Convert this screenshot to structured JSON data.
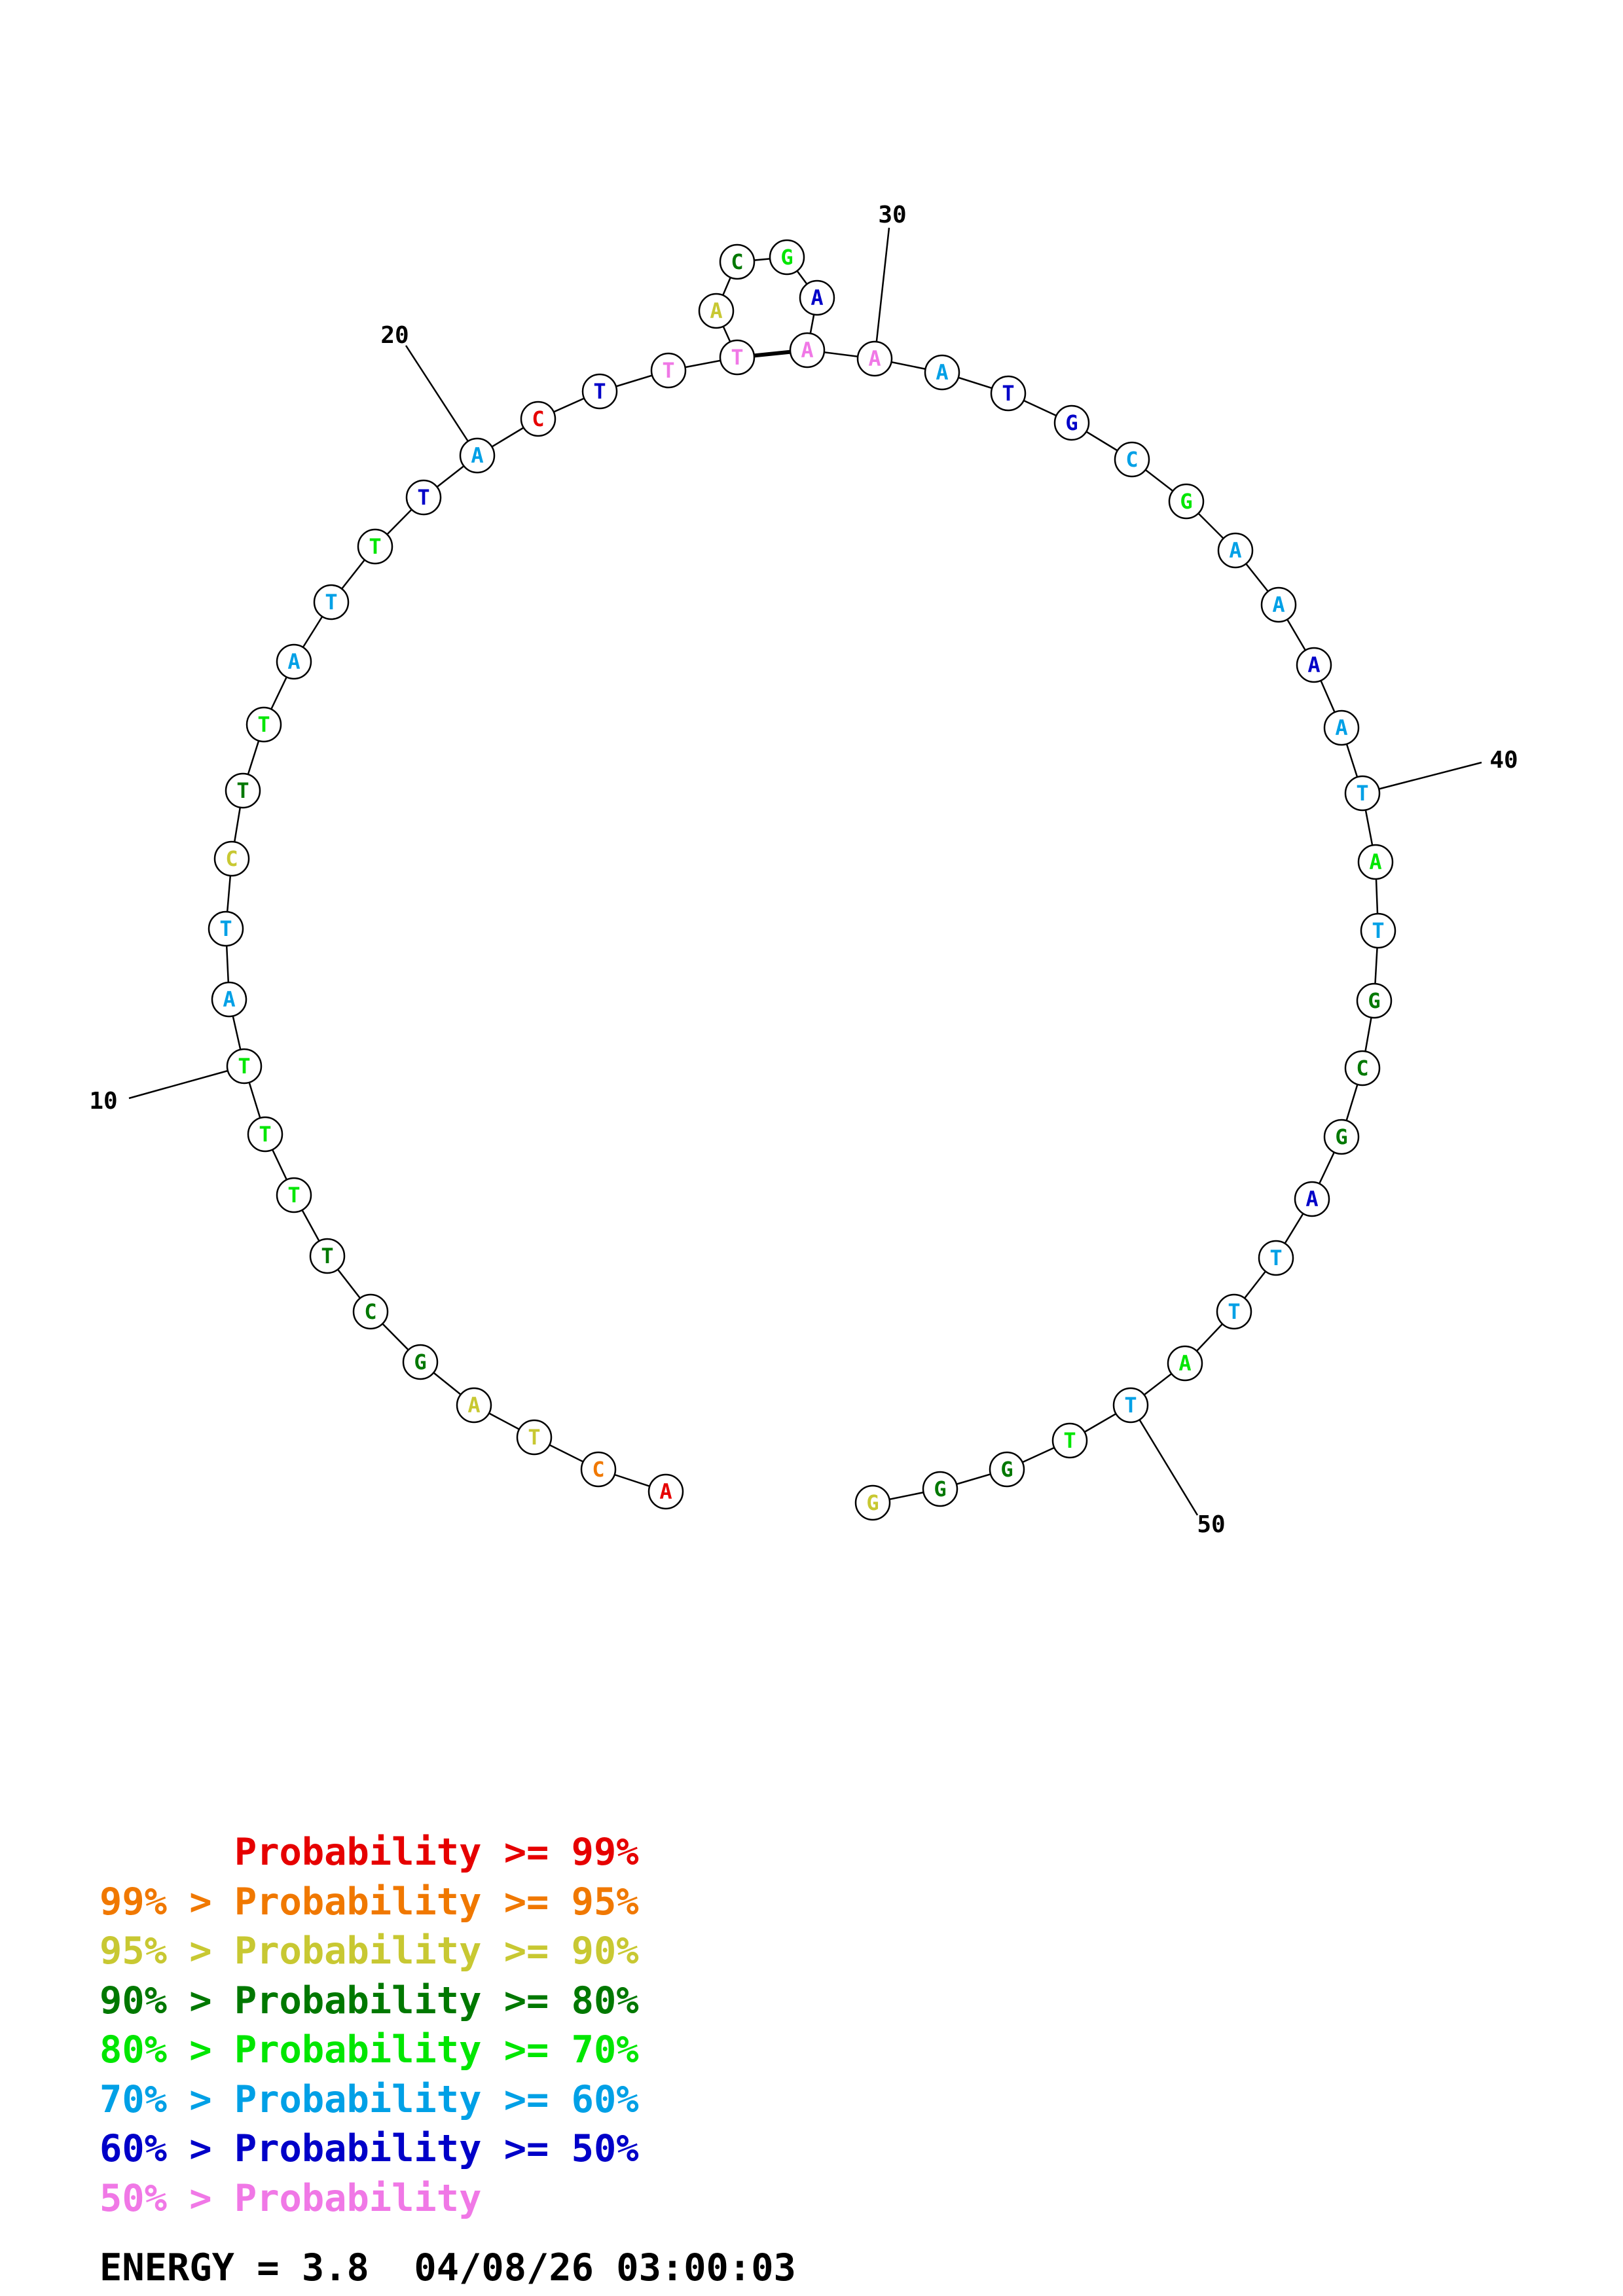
{
  "sequence": [
    {
      "n": 1,
      "base": "A",
      "tier": 0
    },
    {
      "n": 2,
      "base": "C",
      "tier": 1
    },
    {
      "n": 3,
      "base": "T",
      "tier": 2
    },
    {
      "n": 4,
      "base": "A",
      "tier": 2
    },
    {
      "n": 5,
      "base": "G",
      "tier": 3
    },
    {
      "n": 6,
      "base": "C",
      "tier": 3
    },
    {
      "n": 7,
      "base": "T",
      "tier": 3
    },
    {
      "n": 8,
      "base": "T",
      "tier": 4
    },
    {
      "n": 9,
      "base": "T",
      "tier": 4
    },
    {
      "n": 10,
      "base": "T",
      "tier": 4
    },
    {
      "n": 11,
      "base": "A",
      "tier": 5
    },
    {
      "n": 12,
      "base": "T",
      "tier": 5
    },
    {
      "n": 13,
      "base": "C",
      "tier": 2
    },
    {
      "n": 14,
      "base": "T",
      "tier": 3
    },
    {
      "n": 15,
      "base": "T",
      "tier": 4
    },
    {
      "n": 16,
      "base": "A",
      "tier": 5
    },
    {
      "n": 17,
      "base": "T",
      "tier": 5
    },
    {
      "n": 18,
      "base": "T",
      "tier": 4
    },
    {
      "n": 19,
      "base": "T",
      "tier": 6
    },
    {
      "n": 20,
      "base": "A",
      "tier": 5
    },
    {
      "n": 21,
      "base": "C",
      "tier": 0
    },
    {
      "n": 22,
      "base": "T",
      "tier": 6
    },
    {
      "n": 23,
      "base": "T",
      "tier": 7
    },
    {
      "n": 24,
      "base": "T",
      "tier": 7
    },
    {
      "n": 25,
      "base": "A",
      "tier": 2
    },
    {
      "n": 26,
      "base": "C",
      "tier": 3
    },
    {
      "n": 27,
      "base": "G",
      "tier": 4
    },
    {
      "n": 28,
      "base": "A",
      "tier": 6
    },
    {
      "n": 29,
      "base": "A",
      "tier": 7
    },
    {
      "n": 30,
      "base": "A",
      "tier": 7
    },
    {
      "n": 31,
      "base": "A",
      "tier": 5
    },
    {
      "n": 32,
      "base": "T",
      "tier": 6
    },
    {
      "n": 33,
      "base": "G",
      "tier": 6
    },
    {
      "n": 34,
      "base": "C",
      "tier": 5
    },
    {
      "n": 35,
      "base": "G",
      "tier": 4
    },
    {
      "n": 36,
      "base": "A",
      "tier": 5
    },
    {
      "n": 37,
      "base": "A",
      "tier": 5
    },
    {
      "n": 38,
      "base": "A",
      "tier": 6
    },
    {
      "n": 39,
      "base": "A",
      "tier": 5
    },
    {
      "n": 40,
      "base": "T",
      "tier": 5
    },
    {
      "n": 41,
      "base": "A",
      "tier": 4
    },
    {
      "n": 42,
      "base": "T",
      "tier": 5
    },
    {
      "n": 43,
      "base": "G",
      "tier": 3
    },
    {
      "n": 44,
      "base": "C",
      "tier": 3
    },
    {
      "n": 45,
      "base": "G",
      "tier": 3
    },
    {
      "n": 46,
      "base": "A",
      "tier": 6
    },
    {
      "n": 47,
      "base": "T",
      "tier": 5
    },
    {
      "n": 48,
      "base": "T",
      "tier": 5
    },
    {
      "n": 49,
      "base": "A",
      "tier": 4
    },
    {
      "n": 50,
      "base": "T",
      "tier": 5
    },
    {
      "n": 51,
      "base": "T",
      "tier": 4
    },
    {
      "n": 52,
      "base": "G",
      "tier": 3
    },
    {
      "n": 53,
      "base": "G",
      "tier": 3
    },
    {
      "n": 54,
      "base": "G",
      "tier": 2
    }
  ],
  "pairs": [
    [
      24,
      29
    ]
  ],
  "position_labels": [
    {
      "n": 10,
      "text": "10"
    },
    {
      "n": 20,
      "text": "20"
    },
    {
      "n": 30,
      "text": "30"
    },
    {
      "n": 40,
      "text": "40"
    },
    {
      "n": 50,
      "text": "50"
    }
  ],
  "tier_colors": [
    "#e60000",
    "#f07800",
    "#c8c832",
    "#007800",
    "#00e600",
    "#00a0e6",
    "#0000c8",
    "#f078e6"
  ],
  "legend": [
    {
      "text": "      Probability >= 99%",
      "color": "#e60000"
    },
    {
      "text": "99% > Probability >= 95%",
      "color": "#f07800"
    },
    {
      "text": "95% > Probability >= 90%",
      "color": "#c8c832"
    },
    {
      "text": "90% > Probability >= 80%",
      "color": "#007800"
    },
    {
      "text": "80% > Probability >= 70%",
      "color": "#00e600"
    },
    {
      "text": "70% > Probability >= 60%",
      "color": "#00a0e6"
    },
    {
      "text": "60% > Probability >= 50%",
      "color": "#0000c8"
    },
    {
      "text": "50% > Probability",
      "color": "#f078e6"
    }
  ],
  "energy_label": "ENERGY = 3.8  04/08/26 03:00:03"
}
